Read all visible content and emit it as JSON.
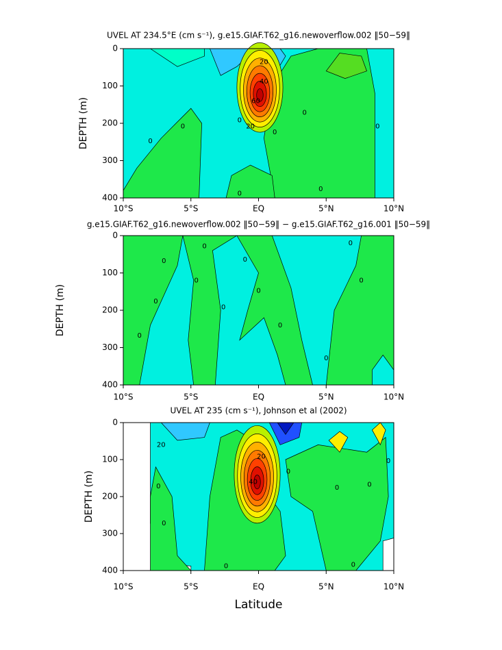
{
  "chart_data": [
    {
      "type": "contour",
      "title": "UVEL AT 234.5°E (cm s⁻¹), g.e15.GIAF.T62_g16.newoverflow.002 ‖50−59‖",
      "y_label": "DEPTH (m)",
      "xlim": [
        -10,
        10
      ],
      "ylim": [
        0,
        400
      ],
      "y_inverted": true,
      "xticks": [
        {
          "value": -10,
          "label": "10°S"
        },
        {
          "value": -5,
          "label": "5°S"
        },
        {
          "value": 0,
          "label": "EQ"
        },
        {
          "value": 5,
          "label": "5°N"
        },
        {
          "value": 10,
          "label": "10°N"
        }
      ],
      "yticks": [
        0,
        100,
        200,
        300,
        400
      ],
      "contour_labels": [
        20,
        40,
        60,
        20,
        0,
        0,
        0,
        0,
        0,
        0,
        0,
        0
      ]
    },
    {
      "type": "contour",
      "title": "g.e15.GIAF.T62_g16.newoverflow.002 ‖50−59‖ − g.e15.GIAF.T62_g16.001 ‖50−59‖",
      "y_label": "DEPTH (m)",
      "xlim": [
        -10,
        10
      ],
      "ylim": [
        0,
        400
      ],
      "y_inverted": true,
      "xticks": [
        {
          "value": -10,
          "label": "10°S"
        },
        {
          "value": -5,
          "label": "5°S"
        },
        {
          "value": 0,
          "label": "EQ"
        },
        {
          "value": 5,
          "label": "5°N"
        },
        {
          "value": 10,
          "label": "10°N"
        }
      ],
      "yticks": [
        0,
        100,
        200,
        300,
        400
      ],
      "contour_labels": [
        0,
        0,
        0,
        0,
        0,
        0,
        0,
        0,
        0,
        0,
        0,
        0
      ]
    },
    {
      "type": "contour",
      "title": "UVEL AT 235 (cm s⁻¹), Johnson et al (2002)",
      "y_label": "DEPTH (m)",
      "x_label": "Latitude",
      "xlim": [
        -10,
        10
      ],
      "ylim": [
        0,
        400
      ],
      "y_inverted": true,
      "xticks": [
        {
          "value": -10,
          "label": "10°S"
        },
        {
          "value": -5,
          "label": "5°S"
        },
        {
          "value": 0,
          "label": "EQ"
        },
        {
          "value": 5,
          "label": "5°N"
        },
        {
          "value": 10,
          "label": "10°N"
        }
      ],
      "yticks": [
        0,
        100,
        200,
        300,
        400
      ],
      "contour_labels": [
        20,
        20,
        40,
        0,
        0,
        0,
        0,
        0,
        0,
        0,
        0
      ]
    }
  ]
}
